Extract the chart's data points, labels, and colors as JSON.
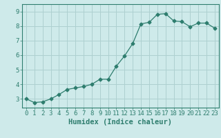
{
  "x": [
    0,
    1,
    2,
    3,
    4,
    5,
    6,
    7,
    8,
    9,
    10,
    11,
    12,
    13,
    14,
    15,
    16,
    17,
    18,
    19,
    20,
    21,
    22,
    23
  ],
  "y": [
    3.0,
    2.75,
    2.8,
    3.0,
    3.3,
    3.65,
    3.75,
    3.85,
    4.0,
    4.35,
    4.35,
    5.25,
    5.95,
    6.8,
    8.15,
    8.25,
    8.8,
    8.85,
    8.35,
    8.3,
    7.95,
    8.2,
    8.2,
    7.85
  ],
  "line_color": "#2e7d6e",
  "marker": "D",
  "marker_size": 2.5,
  "bg_color": "#ceeaea",
  "grid_color": "#aed0d0",
  "xlabel": "Humidex (Indice chaleur)",
  "ylim": [
    2.4,
    9.5
  ],
  "xlim": [
    -0.5,
    23.5
  ],
  "yticks": [
    3,
    4,
    5,
    6,
    7,
    8,
    9
  ],
  "xticks": [
    0,
    1,
    2,
    3,
    4,
    5,
    6,
    7,
    8,
    9,
    10,
    11,
    12,
    13,
    14,
    15,
    16,
    17,
    18,
    19,
    20,
    21,
    22,
    23
  ],
  "tick_color": "#2e7d6e",
  "label_color": "#2e7d6e",
  "label_fontsize": 7.5,
  "tick_fontsize": 6.5,
  "spine_color": "#2e7d6e"
}
